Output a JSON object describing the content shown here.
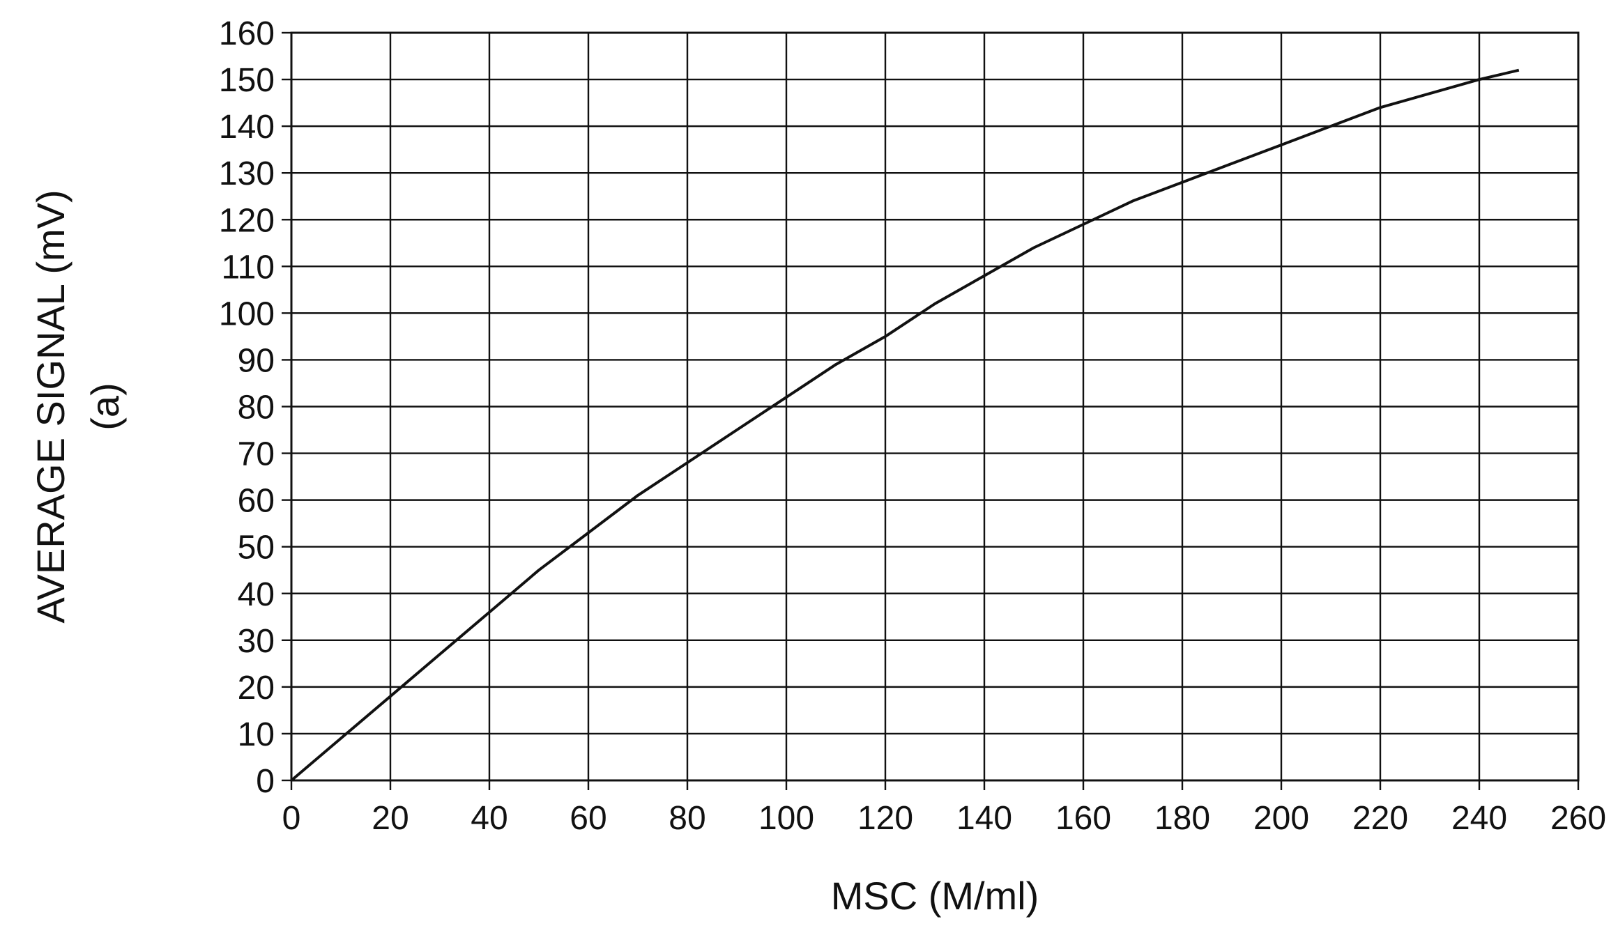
{
  "chart_data": {
    "type": "line",
    "title": "",
    "xlabel": "MSC  (M/ml)",
    "ylabel_lines": [
      "AVERAGE SIGNAL (mV)",
      "(a)"
    ],
    "xlim": [
      0,
      260
    ],
    "ylim": [
      0,
      160
    ],
    "x_ticks": [
      0,
      20,
      40,
      60,
      80,
      100,
      120,
      140,
      160,
      180,
      200,
      220,
      240,
      260
    ],
    "y_ticks": [
      0,
      10,
      20,
      30,
      40,
      50,
      60,
      70,
      80,
      90,
      100,
      110,
      120,
      130,
      140,
      150,
      160
    ],
    "grid": true,
    "legend": "none",
    "series": [
      {
        "x": [
          0,
          10,
          20,
          30,
          40,
          50,
          60,
          70,
          80,
          90,
          100,
          110,
          120,
          130,
          140,
          150,
          160,
          170,
          180,
          190,
          200,
          210,
          220,
          230,
          240,
          248
        ],
        "y": [
          0,
          9,
          18,
          27,
          36,
          45,
          53,
          61,
          68,
          75,
          82,
          89,
          95,
          102,
          108,
          114,
          119,
          124,
          128,
          132,
          136,
          140,
          144,
          147,
          150,
          152
        ]
      }
    ]
  }
}
